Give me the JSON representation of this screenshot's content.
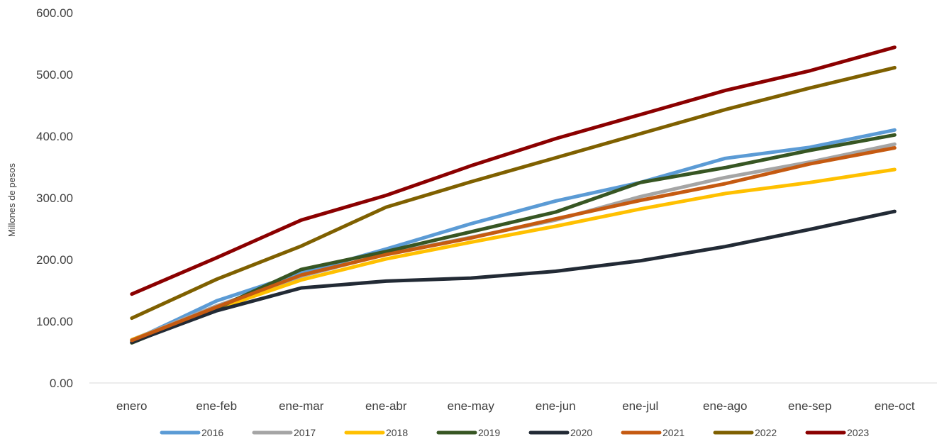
{
  "chart_data": {
    "type": "line",
    "title": "",
    "xlabel": "",
    "ylabel": "Millones de pesos",
    "ylim": [
      0,
      600
    ],
    "yticks": [
      "0.00",
      "100.00",
      "200.00",
      "300.00",
      "400.00",
      "500.00",
      "600.00"
    ],
    "grid": false,
    "legend_position": "bottom",
    "categories": [
      "enero",
      "ene-feb",
      "ene-mar",
      "ene-abr",
      "ene-may",
      "ene-jun",
      "ene-jul",
      "ene-ago",
      "ene-sep",
      "ene-oct"
    ],
    "series": [
      {
        "name": "2016",
        "color": "#5B9BD5",
        "values": [
          68,
          133,
          178,
          217,
          258,
          295,
          325,
          364,
          382,
          410
        ]
      },
      {
        "name": "2017",
        "color": "#A5A5A5",
        "values": [
          70,
          125,
          173,
          209,
          236,
          264,
          302,
          333,
          358,
          387
        ]
      },
      {
        "name": "2018",
        "color": "#FFC000",
        "values": [
          70,
          120,
          167,
          201,
          228,
          254,
          282,
          307,
          325,
          346
        ]
      },
      {
        "name": "2019",
        "color": "#375623",
        "values": [
          65,
          121,
          184,
          213,
          245,
          277,
          325,
          349,
          377,
          402
        ]
      },
      {
        "name": "2020",
        "color": "#222A35",
        "values": [
          66,
          117,
          154,
          165,
          170,
          181,
          198,
          221,
          249,
          278
        ]
      },
      {
        "name": "2021",
        "color": "#C55A11",
        "values": [
          69,
          123,
          175,
          208,
          235,
          266,
          296,
          323,
          355,
          381
        ]
      },
      {
        "name": "2022",
        "color": "#7F6000",
        "values": [
          105,
          168,
          222,
          285,
          326,
          365,
          404,
          443,
          478,
          511
        ]
      },
      {
        "name": "2023",
        "color": "#8B0000",
        "values": [
          144,
          203,
          264,
          304,
          352,
          396,
          435,
          474,
          506,
          544
        ]
      }
    ]
  }
}
